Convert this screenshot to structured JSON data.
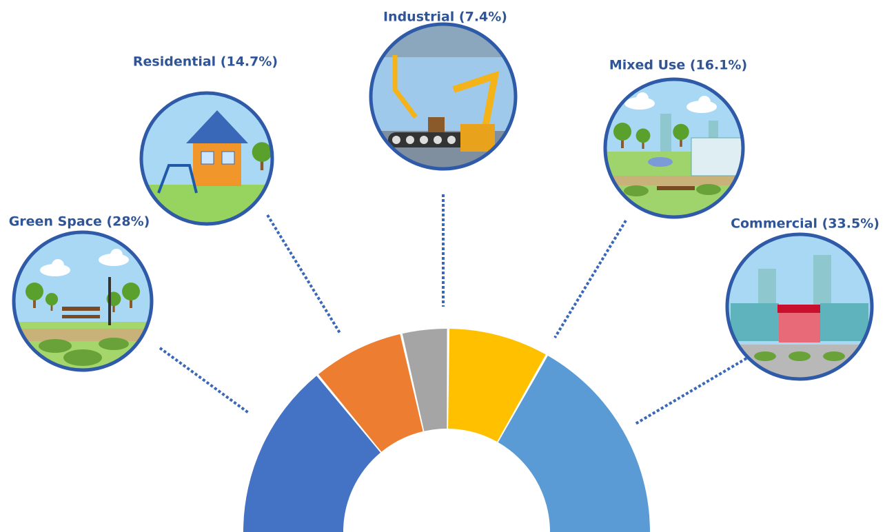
{
  "chart_data": {
    "type": "pie",
    "value_labels": [
      "Green Space (28%)",
      "Residential (14.7%)",
      "Industrial (7.4%)",
      "Mixed Use (16.1%)",
      "Commercial (33.5%)"
    ],
    "values": [
      28,
      14.7,
      7.4,
      16.1,
      33.5
    ],
    "colors": [
      "#4472c4",
      "#ed7d31",
      "#a5a5a5",
      "#ffc000",
      "#5b9bd5"
    ]
  }
}
